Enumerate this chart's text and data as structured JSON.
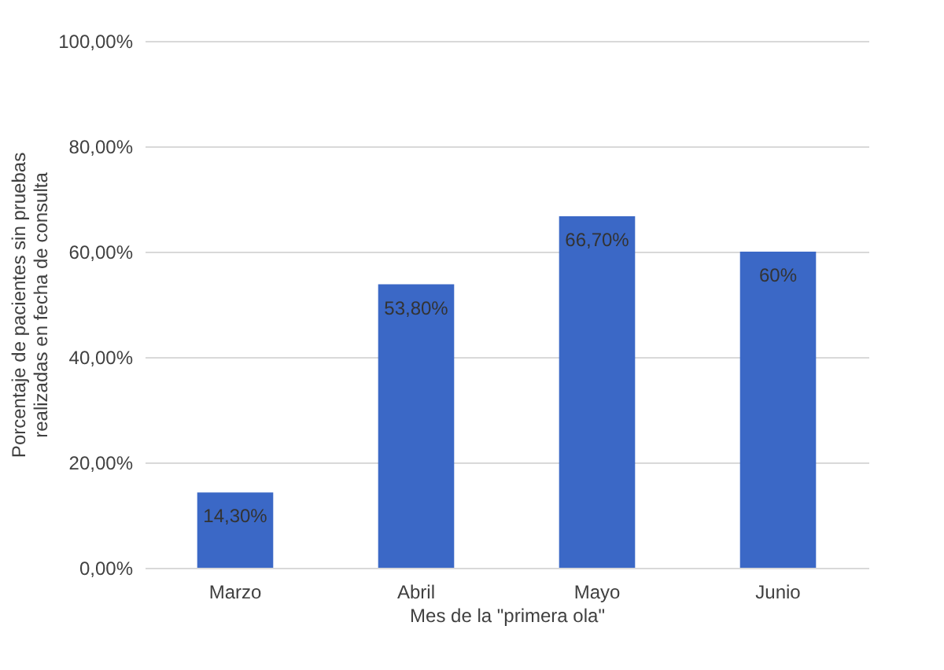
{
  "chart_data": {
    "type": "bar",
    "xlabel": "Mes de la \"primera ola\"",
    "ylabel": "Porcentaje de pacientes sin pruebas realizadas en fecha de consulta",
    "categories": [
      "Marzo",
      "Abril",
      "Mayo",
      "Junio"
    ],
    "values": [
      14.3,
      53.8,
      66.7,
      60
    ],
    "value_labels": [
      "14,30%",
      "53,80%",
      "66,70%",
      "60%"
    ],
    "color": "#3b68c6",
    "ylim": [
      0,
      100
    ],
    "yticks": [
      {
        "value": 0,
        "label": "0,00%"
      },
      {
        "value": 20,
        "label": "20,00%"
      },
      {
        "value": 40,
        "label": "40,00%"
      },
      {
        "value": 60,
        "label": "60,00%"
      },
      {
        "value": 80,
        "label": "80,00%"
      },
      {
        "value": 100,
        "label": "100,00%"
      }
    ],
    "grid": "y"
  }
}
